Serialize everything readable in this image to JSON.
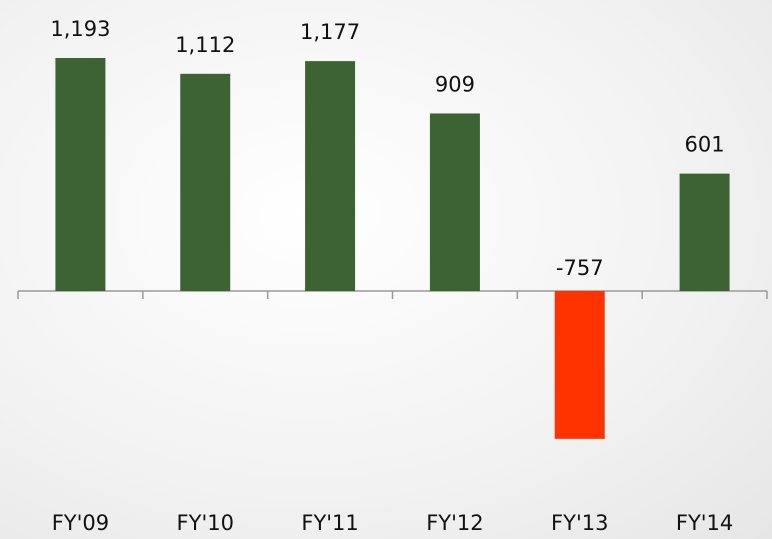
{
  "chart_data": {
    "type": "bar",
    "categories": [
      "FY'09",
      "FY'10",
      "FY'11",
      "FY'12",
      "FY'13",
      "FY'14"
    ],
    "values": [
      1193,
      1112,
      1177,
      909,
      -757,
      601
    ],
    "value_labels": [
      "1,193",
      "1,112",
      "1,177",
      "909",
      "-757",
      "601"
    ],
    "colors": [
      "#3d6332",
      "#3d6332",
      "#3d6332",
      "#3d6332",
      "#ff3300",
      "#3d6332"
    ]
  }
}
